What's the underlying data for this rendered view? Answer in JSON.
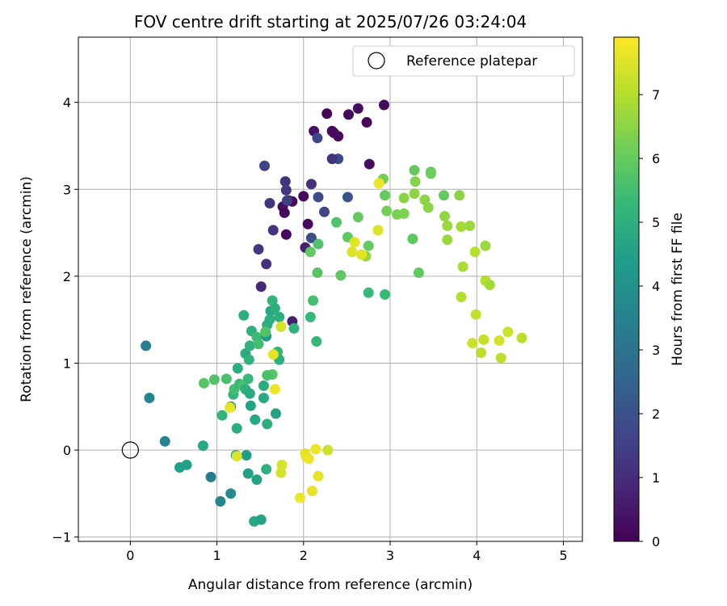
{
  "chart_data": {
    "type": "scatter",
    "title": "FOV centre drift starting at 2025/07/26 03:24:04",
    "xlabel": "Angular distance from reference (arcmin)",
    "ylabel": "Rotation from reference (arcmin)",
    "xlim": [
      -0.6,
      5.22
    ],
    "ylim": [
      -1.05,
      4.75
    ],
    "xticks": [
      0,
      1,
      2,
      3,
      4,
      5
    ],
    "yticks": [
      -1,
      0,
      1,
      2,
      3,
      4
    ],
    "grid": true,
    "legend": {
      "placement": "top-right",
      "label": "Reference platepar"
    },
    "reference_point": {
      "x": 0,
      "y": 0
    },
    "colorbar": {
      "label": "Hours from first FF file",
      "colormap": "viridis",
      "range": [
        0,
        7.9
      ],
      "ticks": [
        0,
        1,
        2,
        3,
        4,
        5,
        6,
        7
      ]
    },
    "colormap_stops": [
      "#440154",
      "#482878",
      "#3e4989",
      "#31688e",
      "#26828e",
      "#1f9e89",
      "#35b779",
      "#6ece58",
      "#b5de2b",
      "#fde725"
    ],
    "points": [
      {
        "x": 2.27,
        "y": 3.87,
        "h": 0.1
      },
      {
        "x": 2.52,
        "y": 3.86,
        "h": 0.2
      },
      {
        "x": 2.63,
        "y": 3.93,
        "h": 0.3
      },
      {
        "x": 2.93,
        "y": 3.97,
        "h": 0.2
      },
      {
        "x": 2.73,
        "y": 3.77,
        "h": 0.1
      },
      {
        "x": 2.33,
        "y": 3.67,
        "h": 0.1
      },
      {
        "x": 2.35,
        "y": 3.65,
        "h": 0.2
      },
      {
        "x": 2.12,
        "y": 3.67,
        "h": 0.4
      },
      {
        "x": 2.4,
        "y": 3.61,
        "h": 0.2
      },
      {
        "x": 2.76,
        "y": 3.29,
        "h": 0.3
      },
      {
        "x": 2.0,
        "y": 2.92,
        "h": 0.2
      },
      {
        "x": 1.83,
        "y": 2.87,
        "h": 0.3
      },
      {
        "x": 1.87,
        "y": 2.86,
        "h": 0.2
      },
      {
        "x": 1.76,
        "y": 2.8,
        "h": 0.3
      },
      {
        "x": 1.78,
        "y": 2.73,
        "h": 0.2
      },
      {
        "x": 2.05,
        "y": 2.6,
        "h": 0.2
      },
      {
        "x": 1.8,
        "y": 2.48,
        "h": 0.2
      },
      {
        "x": 2.02,
        "y": 2.33,
        "h": 0.7
      },
      {
        "x": 1.55,
        "y": 3.27,
        "h": 1.6
      },
      {
        "x": 2.16,
        "y": 3.59,
        "h": 1.7
      },
      {
        "x": 2.4,
        "y": 3.35,
        "h": 1.8
      },
      {
        "x": 2.33,
        "y": 3.35,
        "h": 1.2
      },
      {
        "x": 1.79,
        "y": 3.09,
        "h": 1.2
      },
      {
        "x": 2.09,
        "y": 3.06,
        "h": 1.1
      },
      {
        "x": 1.8,
        "y": 2.99,
        "h": 1.3
      },
      {
        "x": 1.61,
        "y": 2.84,
        "h": 1.2
      },
      {
        "x": 1.81,
        "y": 2.87,
        "h": 1.5
      },
      {
        "x": 2.17,
        "y": 2.91,
        "h": 1.8
      },
      {
        "x": 2.51,
        "y": 2.91,
        "h": 2.1
      },
      {
        "x": 2.24,
        "y": 2.74,
        "h": 1.6
      },
      {
        "x": 1.65,
        "y": 2.53,
        "h": 1.2
      },
      {
        "x": 2.09,
        "y": 2.44,
        "h": 1.9
      },
      {
        "x": 1.48,
        "y": 2.31,
        "h": 1.3
      },
      {
        "x": 1.57,
        "y": 2.14,
        "h": 1.1
      },
      {
        "x": 1.51,
        "y": 1.88,
        "h": 0.9
      },
      {
        "x": 1.87,
        "y": 1.48,
        "h": 0.7
      },
      {
        "x": 0.18,
        "y": 1.2,
        "h": 3.4
      },
      {
        "x": 0.22,
        "y": 0.6,
        "h": 3.6
      },
      {
        "x": 0.4,
        "y": 0.1,
        "h": 3.5
      },
      {
        "x": 0.84,
        "y": 0.05,
        "h": 4.7
      },
      {
        "x": 0.57,
        "y": -0.2,
        "h": 4.5
      },
      {
        "x": 0.65,
        "y": -0.17,
        "h": 4.5
      },
      {
        "x": 0.93,
        "y": -0.31,
        "h": 3.3
      },
      {
        "x": 1.04,
        "y": -0.59,
        "h": 3.6
      },
      {
        "x": 1.16,
        "y": -0.5,
        "h": 3.8
      },
      {
        "x": 1.22,
        "y": -0.06,
        "h": 4.5
      },
      {
        "x": 1.34,
        "y": -0.06,
        "h": 4.4
      },
      {
        "x": 1.36,
        "y": -0.27,
        "h": 4.5
      },
      {
        "x": 1.46,
        "y": -0.34,
        "h": 4.6
      },
      {
        "x": 1.57,
        "y": -0.22,
        "h": 5.0
      },
      {
        "x": 1.43,
        "y": -0.82,
        "h": 4.7
      },
      {
        "x": 1.51,
        "y": -0.8,
        "h": 4.6
      },
      {
        "x": 1.23,
        "y": 0.25,
        "h": 4.9
      },
      {
        "x": 1.06,
        "y": 0.4,
        "h": 5.2
      },
      {
        "x": 1.16,
        "y": 0.5,
        "h": 4.2
      },
      {
        "x": 1.19,
        "y": 0.64,
        "h": 5.2
      },
      {
        "x": 1.2,
        "y": 0.7,
        "h": 5.5
      },
      {
        "x": 1.26,
        "y": 0.76,
        "h": 5.3
      },
      {
        "x": 1.3,
        "y": 0.74,
        "h": 5.6
      },
      {
        "x": 1.33,
        "y": 0.7,
        "h": 5.0
      },
      {
        "x": 1.38,
        "y": 0.65,
        "h": 4.8
      },
      {
        "x": 1.44,
        "y": 0.35,
        "h": 4.7
      },
      {
        "x": 1.58,
        "y": 0.3,
        "h": 4.9
      },
      {
        "x": 1.54,
        "y": 0.6,
        "h": 4.8
      },
      {
        "x": 1.68,
        "y": 0.42,
        "h": 4.6
      },
      {
        "x": 1.39,
        "y": 0.51,
        "h": 4.6
      },
      {
        "x": 1.24,
        "y": 0.94,
        "h": 4.9
      },
      {
        "x": 1.36,
        "y": 0.82,
        "h": 5.3
      },
      {
        "x": 1.11,
        "y": 0.82,
        "h": 5.6
      },
      {
        "x": 0.97,
        "y": 0.81,
        "h": 5.7
      },
      {
        "x": 0.85,
        "y": 0.77,
        "h": 5.8
      },
      {
        "x": 1.33,
        "y": 1.11,
        "h": 4.8
      },
      {
        "x": 1.37,
        "y": 1.04,
        "h": 5.1
      },
      {
        "x": 1.38,
        "y": 1.2,
        "h": 5.1
      },
      {
        "x": 1.31,
        "y": 1.55,
        "h": 5.0
      },
      {
        "x": 1.4,
        "y": 1.37,
        "h": 5.0
      },
      {
        "x": 1.46,
        "y": 1.3,
        "h": 5.4
      },
      {
        "x": 1.48,
        "y": 1.22,
        "h": 5.5
      },
      {
        "x": 1.57,
        "y": 1.31,
        "h": 4.3
      },
      {
        "x": 1.58,
        "y": 1.44,
        "h": 5.0
      },
      {
        "x": 1.62,
        "y": 1.6,
        "h": 4.6
      },
      {
        "x": 1.61,
        "y": 1.5,
        "h": 4.9
      },
      {
        "x": 1.64,
        "y": 1.72,
        "h": 5.2
      },
      {
        "x": 1.67,
        "y": 1.63,
        "h": 5.0
      },
      {
        "x": 1.72,
        "y": 1.04,
        "h": 5.0
      },
      {
        "x": 1.7,
        "y": 1.13,
        "h": 5.2
      },
      {
        "x": 1.64,
        "y": 0.87,
        "h": 5.8
      },
      {
        "x": 1.58,
        "y": 0.86,
        "h": 5.6
      },
      {
        "x": 1.54,
        "y": 0.74,
        "h": 4.9
      },
      {
        "x": 1.56,
        "y": 1.36,
        "h": 5.7
      },
      {
        "x": 1.72,
        "y": 1.53,
        "h": 5.0
      },
      {
        "x": 1.89,
        "y": 1.4,
        "h": 5.1
      },
      {
        "x": 2.08,
        "y": 1.53,
        "h": 5.3
      },
      {
        "x": 2.11,
        "y": 1.72,
        "h": 5.5
      },
      {
        "x": 2.15,
        "y": 1.25,
        "h": 5.3
      },
      {
        "x": 2.16,
        "y": 2.04,
        "h": 5.8
      },
      {
        "x": 2.08,
        "y": 2.28,
        "h": 5.9
      },
      {
        "x": 2.17,
        "y": 2.37,
        "h": 5.7
      },
      {
        "x": 2.43,
        "y": 2.01,
        "h": 5.9
      },
      {
        "x": 2.38,
        "y": 2.62,
        "h": 5.7
      },
      {
        "x": 2.51,
        "y": 2.45,
        "h": 5.9
      },
      {
        "x": 2.63,
        "y": 2.68,
        "h": 6.0
      },
      {
        "x": 2.75,
        "y": 2.35,
        "h": 6.0
      },
      {
        "x": 2.75,
        "y": 1.81,
        "h": 5.3
      },
      {
        "x": 2.94,
        "y": 1.79,
        "h": 5.3
      },
      {
        "x": 2.92,
        "y": 3.12,
        "h": 6.2
      },
      {
        "x": 2.94,
        "y": 2.93,
        "h": 6.0
      },
      {
        "x": 2.96,
        "y": 2.75,
        "h": 6.2
      },
      {
        "x": 3.08,
        "y": 2.71,
        "h": 6.3
      },
      {
        "x": 3.16,
        "y": 2.9,
        "h": 6.5
      },
      {
        "x": 3.16,
        "y": 2.72,
        "h": 6.3
      },
      {
        "x": 3.26,
        "y": 2.43,
        "h": 5.9
      },
      {
        "x": 3.28,
        "y": 3.22,
        "h": 6.0
      },
      {
        "x": 3.29,
        "y": 3.09,
        "h": 6.4
      },
      {
        "x": 3.28,
        "y": 2.95,
        "h": 6.5
      },
      {
        "x": 3.33,
        "y": 2.04,
        "h": 5.9
      },
      {
        "x": 3.4,
        "y": 2.88,
        "h": 6.5
      },
      {
        "x": 3.44,
        "y": 2.79,
        "h": 6.5
      },
      {
        "x": 3.47,
        "y": 3.2,
        "h": 6.0
      },
      {
        "x": 3.47,
        "y": 3.18,
        "h": 6.1
      },
      {
        "x": 3.62,
        "y": 2.93,
        "h": 6.0
      },
      {
        "x": 3.63,
        "y": 2.69,
        "h": 6.6
      },
      {
        "x": 3.66,
        "y": 2.58,
        "h": 6.7
      },
      {
        "x": 3.66,
        "y": 2.42,
        "h": 6.7
      },
      {
        "x": 3.8,
        "y": 2.93,
        "h": 6.5
      },
      {
        "x": 3.82,
        "y": 2.57,
        "h": 6.8
      },
      {
        "x": 3.84,
        "y": 2.11,
        "h": 6.9
      },
      {
        "x": 3.92,
        "y": 2.58,
        "h": 6.7
      },
      {
        "x": 3.98,
        "y": 2.28,
        "h": 7.0
      },
      {
        "x": 3.99,
        "y": 1.56,
        "h": 7.2
      },
      {
        "x": 3.82,
        "y": 1.76,
        "h": 7.0
      },
      {
        "x": 4.1,
        "y": 2.35,
        "h": 6.7
      },
      {
        "x": 4.1,
        "y": 1.95,
        "h": 7.0
      },
      {
        "x": 4.15,
        "y": 1.9,
        "h": 6.8
      },
      {
        "x": 3.95,
        "y": 1.23,
        "h": 7.3
      },
      {
        "x": 4.05,
        "y": 1.12,
        "h": 7.1
      },
      {
        "x": 4.08,
        "y": 1.27,
        "h": 7.2
      },
      {
        "x": 4.26,
        "y": 1.26,
        "h": 7.4
      },
      {
        "x": 4.28,
        "y": 1.06,
        "h": 7.1
      },
      {
        "x": 4.36,
        "y": 1.36,
        "h": 7.3
      },
      {
        "x": 4.52,
        "y": 1.29,
        "h": 7.1
      },
      {
        "x": 2.72,
        "y": 2.23,
        "h": 6.6
      },
      {
        "x": 2.87,
        "y": 3.07,
        "h": 7.7
      },
      {
        "x": 2.86,
        "y": 2.53,
        "h": 7.5
      },
      {
        "x": 2.59,
        "y": 2.39,
        "h": 7.6
      },
      {
        "x": 2.56,
        "y": 2.28,
        "h": 7.5
      },
      {
        "x": 2.67,
        "y": 2.25,
        "h": 7.6
      },
      {
        "x": 1.74,
        "y": 1.42,
        "h": 7.4
      },
      {
        "x": 1.65,
        "y": 1.1,
        "h": 7.6
      },
      {
        "x": 1.67,
        "y": 0.7,
        "h": 7.7
      },
      {
        "x": 1.15,
        "y": 0.49,
        "h": 7.6
      },
      {
        "x": 1.23,
        "y": -0.07,
        "h": 7.5
      },
      {
        "x": 1.74,
        "y": -0.26,
        "h": 7.4
      },
      {
        "x": 1.75,
        "y": -0.17,
        "h": 7.4
      },
      {
        "x": 1.96,
        "y": -0.55,
        "h": 7.7
      },
      {
        "x": 2.03,
        "y": -0.07,
        "h": 7.4
      },
      {
        "x": 2.02,
        "y": -0.04,
        "h": 7.6
      },
      {
        "x": 2.06,
        "y": -0.1,
        "h": 7.7
      },
      {
        "x": 2.1,
        "y": -0.47,
        "h": 7.6
      },
      {
        "x": 2.14,
        "y": 0.01,
        "h": 7.7
      },
      {
        "x": 2.17,
        "y": -0.3,
        "h": 7.6
      },
      {
        "x": 2.28,
        "y": 0.0,
        "h": 7.3
      }
    ]
  }
}
